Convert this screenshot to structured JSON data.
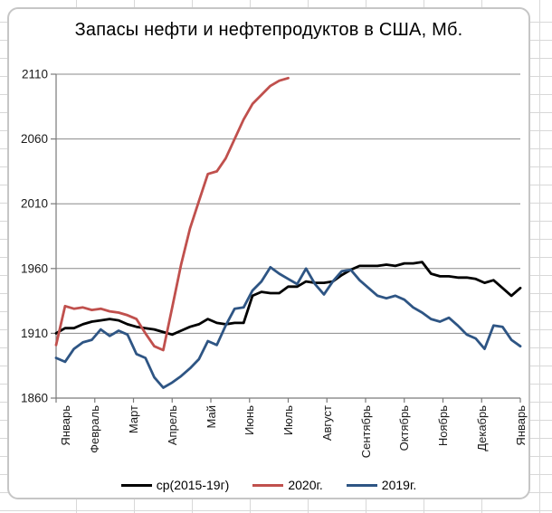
{
  "chart_data": {
    "type": "line",
    "title": "Запасы нефти и нефтепродуктов в США, Мб.",
    "x_axis": {
      "granularity": "weekly",
      "label_rotation_deg": 90,
      "tick_labels": [
        "Январь",
        "Февраль",
        "Март",
        "Апрель",
        "Май",
        "Июнь",
        "Июль",
        "Август",
        "Сентябрь",
        "Октябрь",
        "Ноябрь",
        "Декабрь",
        "Январь"
      ]
    },
    "y_axis": {
      "min": 1860,
      "max": 2110,
      "tick_step": 50,
      "tick_labels": [
        "2110",
        "2060",
        "2010",
        "1960",
        "1910",
        "1860"
      ]
    },
    "grid": {
      "horizontal": true,
      "vertical": false
    },
    "legend_position": "bottom",
    "colors": {
      "gridline": "#8a8a8a",
      "axis": "#7a7a7a",
      "tick_text": "#1a1a1a",
      "title_text": "#000000"
    },
    "series": [
      {
        "name": "ср(2015-19г)",
        "color": "#000000",
        "values": [
          1910,
          1914,
          1914,
          1917,
          1919,
          1920,
          1921,
          1920,
          1917,
          1915,
          1914,
          1913,
          1911,
          1909,
          1912,
          1915,
          1917,
          1921,
          1918,
          1917,
          1918,
          1918,
          1939,
          1942,
          1941,
          1941,
          1946,
          1946,
          1950,
          1949,
          1949,
          1950,
          1955,
          1959,
          1962,
          1962,
          1962,
          1963,
          1962,
          1964,
          1964,
          1965,
          1956,
          1954,
          1954,
          1953,
          1953,
          1952,
          1949,
          1951,
          1945,
          1939,
          1945
        ]
      },
      {
        "name": "2020г.",
        "color": "#c0504d",
        "values": [
          1901,
          1931,
          1929,
          1930,
          1928,
          1929,
          1927,
          1926,
          1924,
          1921,
          1910,
          1900,
          1897,
          1930,
          1963,
          1991,
          2012,
          2033,
          2035,
          2045,
          2060,
          2075,
          2087,
          2094,
          2101,
          2105,
          2107
        ]
      },
      {
        "name": "2019г.",
        "color": "#2e5584",
        "values": [
          1891,
          1888,
          1898,
          1903,
          1905,
          1913,
          1908,
          1912,
          1909,
          1894,
          1891,
          1876,
          1868,
          1872,
          1877,
          1883,
          1890,
          1904,
          1901,
          1916,
          1929,
          1930,
          1943,
          1950,
          1961,
          1956,
          1952,
          1948,
          1960,
          1948,
          1940,
          1950,
          1958,
          1959,
          1951,
          1945,
          1939,
          1937,
          1939,
          1936,
          1930,
          1926,
          1921,
          1919,
          1922,
          1916,
          1909,
          1906,
          1898,
          1916,
          1915,
          1905,
          1900
        ]
      }
    ]
  }
}
